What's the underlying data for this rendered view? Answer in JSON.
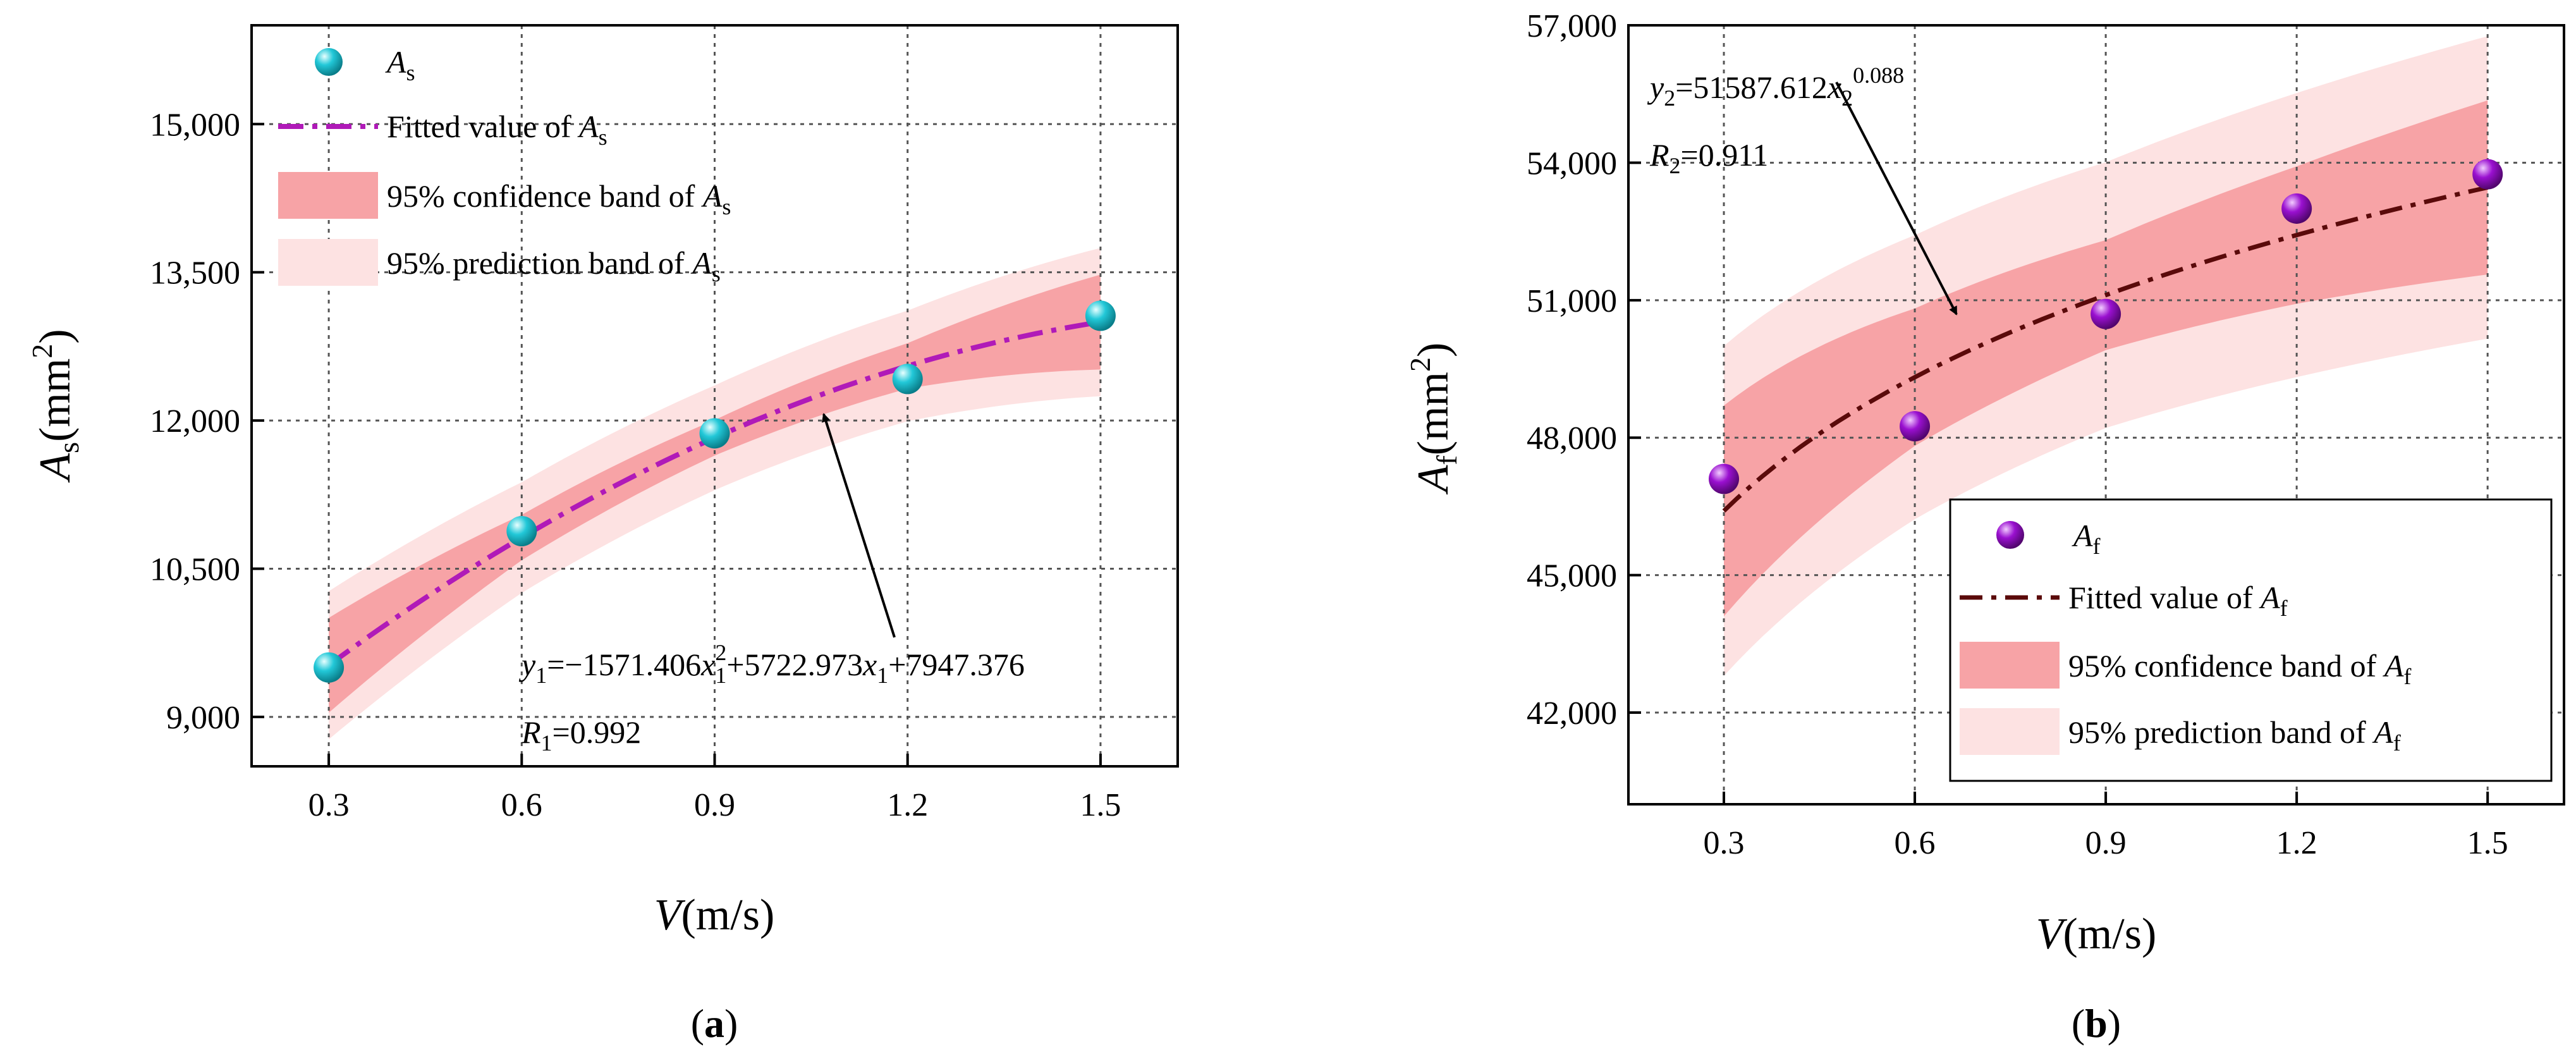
{
  "chart_data": [
    {
      "id": "a",
      "type": "scatter",
      "caption": {
        "open": "(",
        "letter": "a",
        "close": ")"
      },
      "x_ticks": [
        "0.3",
        "0.6",
        "0.9",
        "1.2",
        "1.5"
      ],
      "y_ticks": [
        "9,000",
        "10,500",
        "12,000",
        "13,500",
        "15,000"
      ],
      "xlim": [
        0.18,
        1.62
      ],
      "ylim": [
        8500,
        16000
      ],
      "ytick_values": [
        9000,
        10500,
        12000,
        13500,
        15000
      ],
      "xtick_values": [
        0.3,
        0.6,
        0.9,
        1.2,
        1.5
      ],
      "xlabel": {
        "var": "V",
        "unit": "(m/s)"
      },
      "ylabel": {
        "var": "A",
        "sub": "s",
        "unit": "(mm",
        "sup": "2",
        "close": ")"
      },
      "points": {
        "x": [
          0.3,
          0.6,
          0.9,
          1.2,
          1.5
        ],
        "y": [
          9500,
          10880,
          11870,
          12420,
          13060
        ]
      },
      "fit": {
        "a": -1571.406,
        "b": 5722.973,
        "c": 7947.376,
        "form": "quadratic"
      },
      "band_halfwidth": {
        "x": [
          0.3,
          0.6,
          0.9,
          1.2,
          1.5
        ],
        "confidence": [
          480,
          230,
          180,
          230,
          480
        ],
        "prediction": [
          750,
          560,
          530,
          560,
          750
        ]
      },
      "legend": {
        "points": {
          "var": "A",
          "sub": "s"
        },
        "fit": {
          "text": "Fitted value of ",
          "var": "A",
          "sub": "s"
        },
        "confidence": {
          "text": "95% confidence band of ",
          "var": "A",
          "sub": "s"
        },
        "prediction": {
          "text": "95% prediction band of ",
          "var": "A",
          "sub": "s"
        }
      },
      "annotation": {
        "y_var": "y",
        "y_sub": "1",
        "eq1": "=−1571.406",
        "x1": "x",
        "x1_sub": "1",
        "x1_sup": "2",
        "eq2": "+5722.973",
        "x2": "x",
        "x2_sub": "1",
        "eq3": "+7947.376",
        "r_var": "R",
        "r_sub": "1",
        "r_val": "=0.992"
      },
      "colors": {
        "point": "#22c8d8",
        "fit": "#b01ab8",
        "confidence": "#f7a3a6",
        "prediction": "#fde2e2"
      }
    },
    {
      "id": "b",
      "type": "scatter",
      "caption": {
        "open": "(",
        "letter": "b",
        "close": ")"
      },
      "x_ticks": [
        "0.3",
        "0.6",
        "0.9",
        "1.2",
        "1.5"
      ],
      "y_ticks": [
        "42,000",
        "45,000",
        "48,000",
        "51,000",
        "54,000",
        "57,000"
      ],
      "xlim": [
        0.15,
        1.62
      ],
      "ylim": [
        40000,
        57000
      ],
      "ytick_values": [
        42000,
        45000,
        48000,
        51000,
        54000,
        57000
      ],
      "xtick_values": [
        0.3,
        0.6,
        0.9,
        1.2,
        1.5
      ],
      "xlabel": {
        "var": "V",
        "unit": "(m/s)"
      },
      "ylabel": {
        "var": "A",
        "sub": "f",
        "unit": "(mm",
        "sup": "2",
        "close": ")"
      },
      "points": {
        "x": [
          0.3,
          0.6,
          0.9,
          1.2,
          1.5
        ],
        "y": [
          47100,
          48250,
          50700,
          53000,
          53750
        ]
      },
      "fit": {
        "a": 51587.612,
        "b": 0.088,
        "form": "power"
      },
      "band_halfwidth": {
        "x": [
          0.3,
          0.6,
          0.9,
          1.2,
          1.5
        ],
        "confidence": [
          2300,
          1500,
          1200,
          1500,
          1900
        ],
        "prediction": [
          3600,
          3100,
          2900,
          3100,
          3300
        ]
      },
      "legend": {
        "points": {
          "var": "A",
          "sub": "f"
        },
        "fit": {
          "text": "Fitted value of ",
          "var": "A",
          "sub": "f"
        },
        "confidence": {
          "text": "95% confidence band of ",
          "var": "A",
          "sub": "f"
        },
        "prediction": {
          "text": "95% prediction band of ",
          "var": "A",
          "sub": "f"
        }
      },
      "annotation": {
        "y_var": "y",
        "y_sub": "2",
        "eq1": "=51587.612",
        "x1": "x",
        "x1_sub": "2",
        "x1_sup": "0.088",
        "r_var": "R",
        "r_sub": "2",
        "r_val": "=0.911"
      },
      "colors": {
        "point": "#9a10d0",
        "fit": "#5a0a0a",
        "confidence": "#f7a3a6",
        "prediction": "#fde2e2"
      }
    }
  ]
}
